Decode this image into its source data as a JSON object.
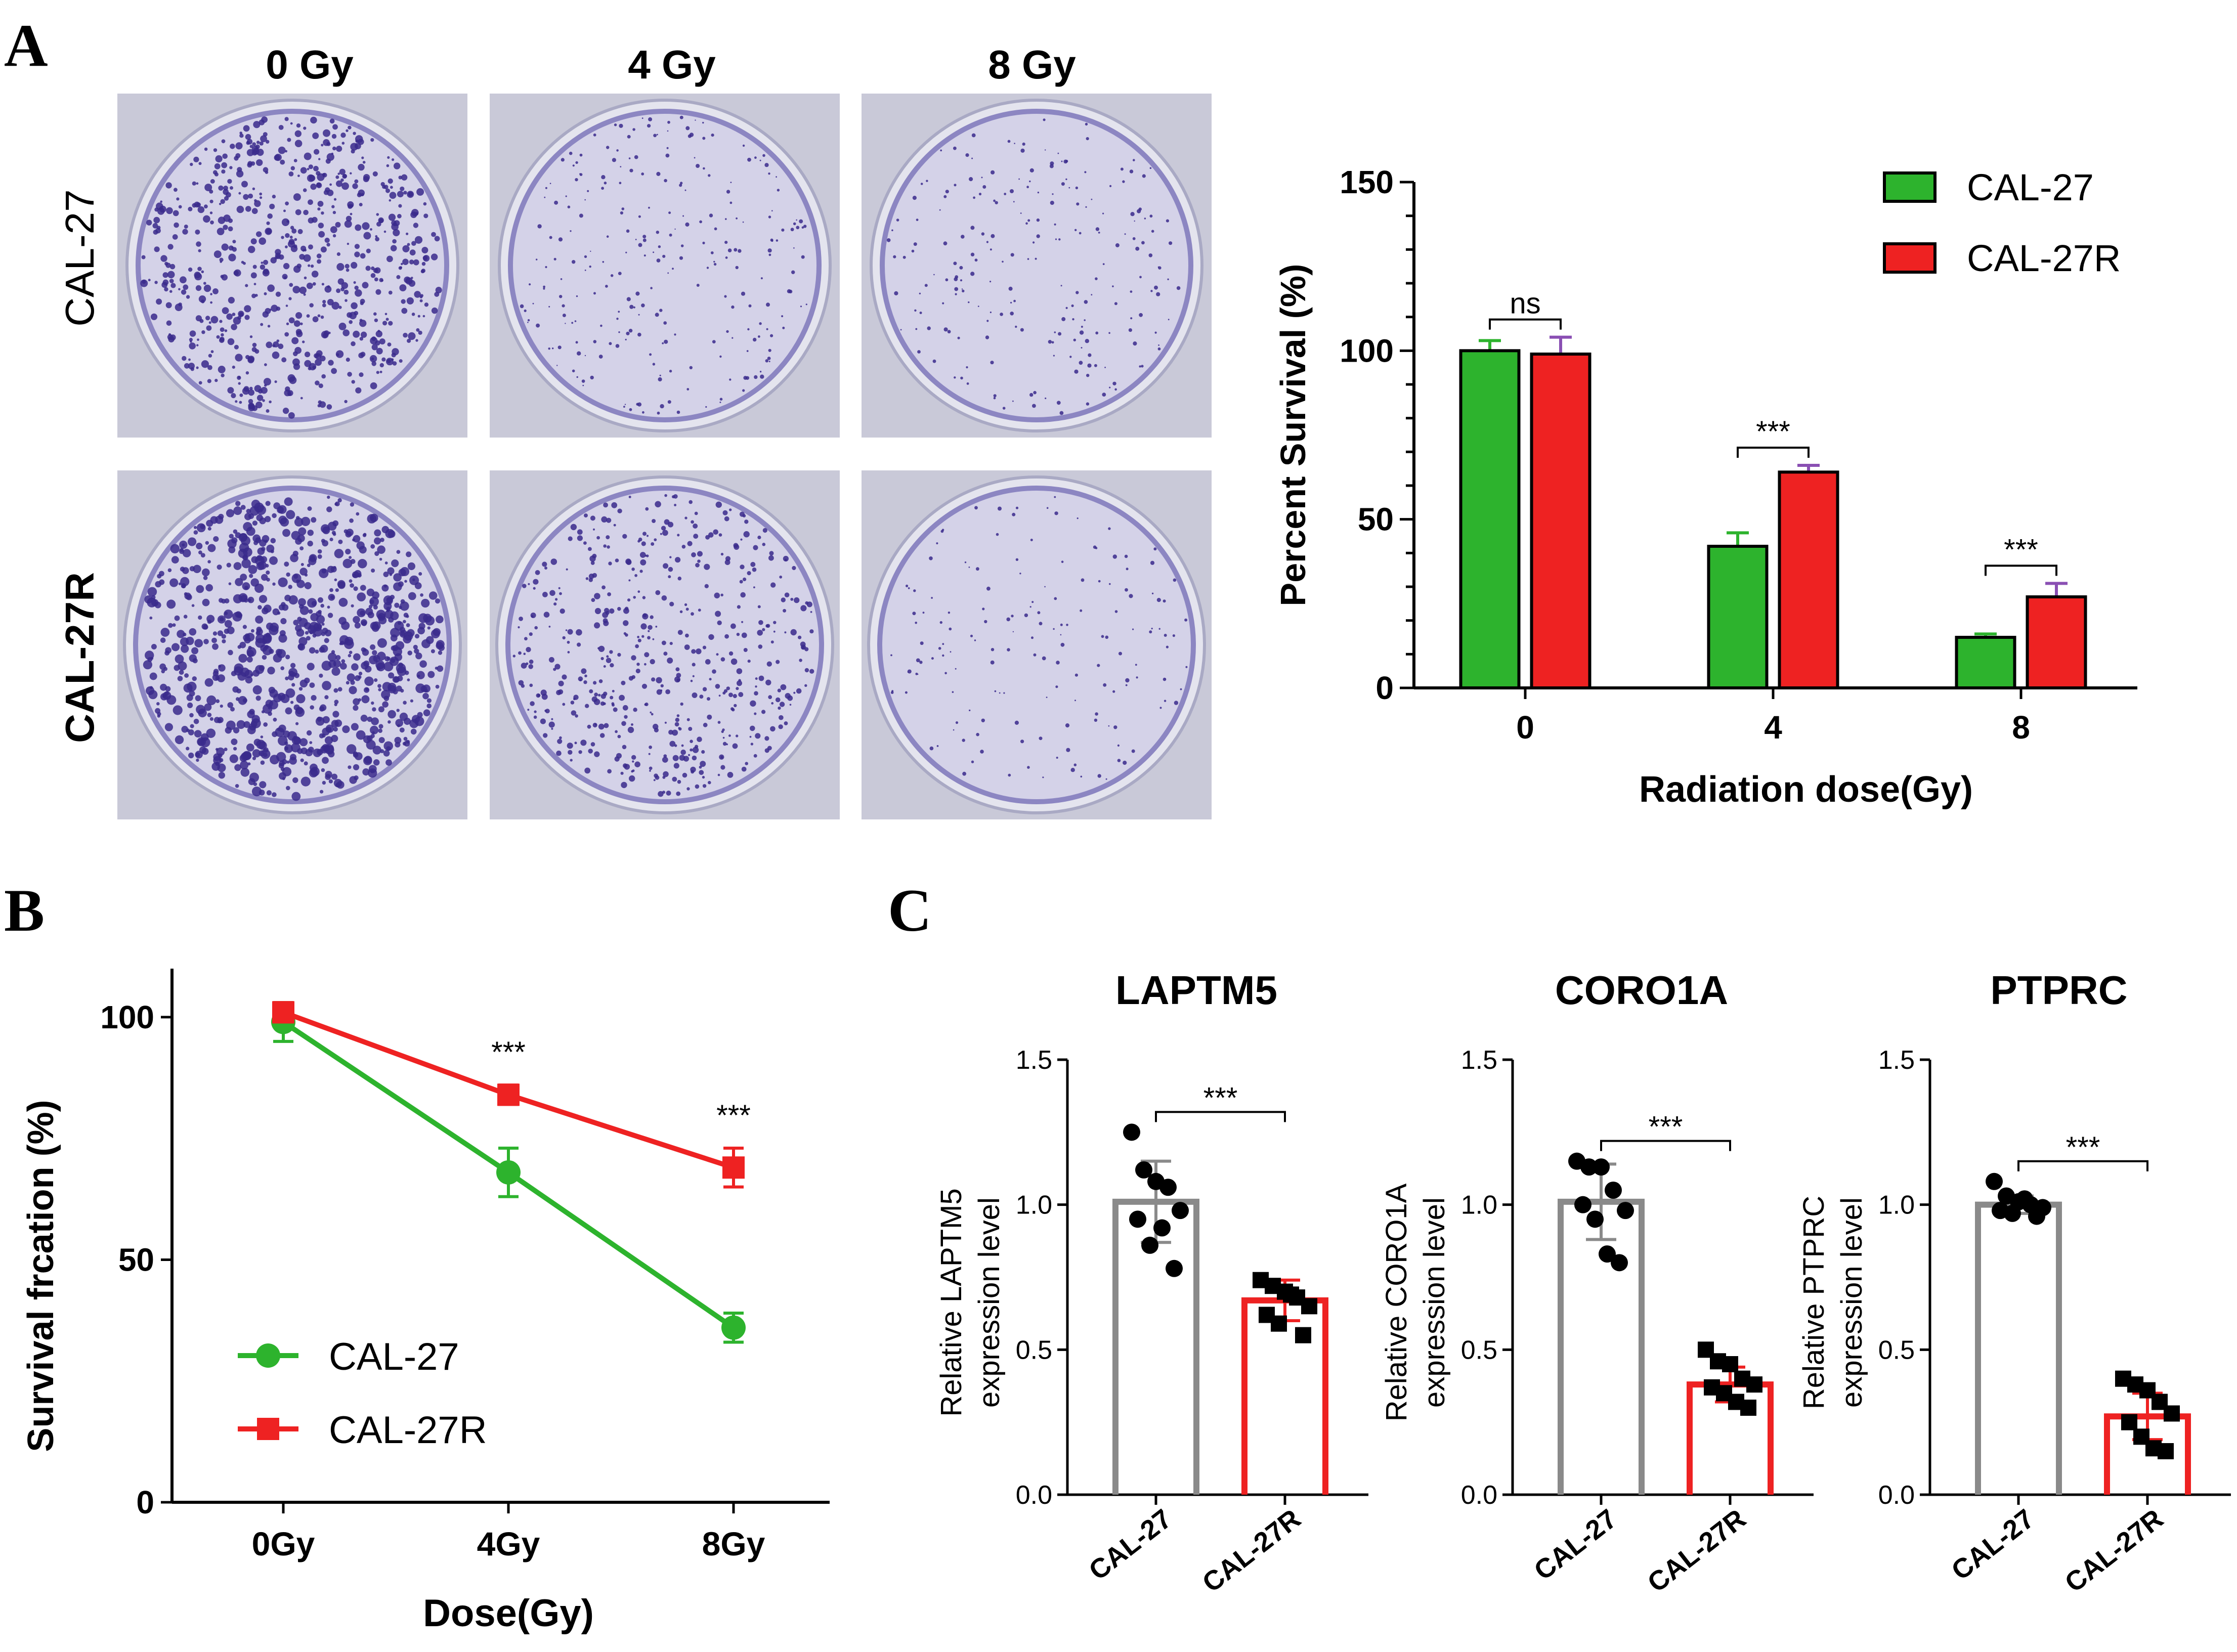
{
  "panels": {
    "A": "A",
    "B": "B",
    "C": "C"
  },
  "photos": {
    "column_labels": [
      "0 Gy",
      "4 Gy",
      "8 Gy"
    ],
    "row_labels": [
      "CAL-27",
      "CAL-27R"
    ],
    "stain_color": "#3a2a8c",
    "plate_color": "#d8d8e6"
  },
  "colors": {
    "green": "#2db32d",
    "red": "#ee2222",
    "gray": "#8a8a8a",
    "errorbar_red": "#8a4fb3"
  },
  "chart_data": [
    {
      "id": "A-bar",
      "type": "bar",
      "categories": [
        "0",
        "4",
        "8"
      ],
      "series": [
        {
          "name": "CAL-27",
          "color": "#2db32d",
          "values": [
            100,
            42,
            15
          ],
          "errors": [
            3,
            4,
            1
          ]
        },
        {
          "name": "CAL-27R",
          "color": "#ee2222",
          "values": [
            99,
            64,
            27
          ],
          "errors": [
            5,
            2,
            4
          ]
        }
      ],
      "significance": [
        "ns",
        "***",
        "***"
      ],
      "xlabel": "Radiation dose(Gy)",
      "ylabel": "Percent Survival (%)",
      "ylim": [
        0,
        150
      ],
      "yticks": [
        "0",
        "50",
        "100",
        "150"
      ],
      "legend_position": "top-right"
    },
    {
      "id": "B-line",
      "type": "line",
      "categories": [
        "0Gy",
        "4Gy",
        "8Gy"
      ],
      "series": [
        {
          "name": "CAL-27",
          "color": "#2db32d",
          "marker": "circle",
          "values": [
            99,
            68,
            36
          ],
          "errors": [
            4,
            5,
            3
          ]
        },
        {
          "name": "CAL-27R",
          "color": "#ee2222",
          "marker": "square",
          "values": [
            101,
            84,
            69
          ],
          "errors": [
            2,
            2,
            4
          ]
        }
      ],
      "significance": [
        "",
        "***",
        "***"
      ],
      "xlabel": "Dose(Gy)",
      "ylabel": "Survival frcation (%)",
      "ylim": [
        0,
        110
      ],
      "yticks": [
        "0",
        "50",
        "100"
      ],
      "legend_position": "bottom-left"
    },
    {
      "id": "C-LAPTM5",
      "type": "bar",
      "title": "LAPTM5",
      "ylabel": [
        "Relative LAPTM5",
        "expression level"
      ],
      "categories": [
        "CAL-27",
        "CAL-27R"
      ],
      "means": [
        1.01,
        0.67
      ],
      "sd": [
        0.14,
        0.07
      ],
      "points": [
        [
          1.25,
          1.12,
          1.08,
          1.06,
          0.98,
          0.95,
          0.86,
          0.92,
          0.78
        ],
        [
          0.74,
          0.72,
          0.7,
          0.68,
          0.65,
          0.62,
          0.59,
          0.69,
          0.55
        ]
      ],
      "significance": "***",
      "ylim": [
        0,
        1.5
      ],
      "yticks": [
        "0.0",
        "0.5",
        "1.0",
        "1.5"
      ]
    },
    {
      "id": "C-CORO1A",
      "type": "bar",
      "title": "CORO1A",
      "ylabel": [
        "Relative CORO1A",
        "expression level"
      ],
      "categories": [
        "CAL-27",
        "CAL-27R"
      ],
      "means": [
        1.01,
        0.38
      ],
      "sd": [
        0.13,
        0.06
      ],
      "points": [
        [
          1.15,
          1.13,
          1.13,
          1.05,
          0.98,
          1.0,
          0.95,
          0.83,
          0.8
        ],
        [
          0.5,
          0.46,
          0.45,
          0.4,
          0.38,
          0.37,
          0.35,
          0.32,
          0.3
        ]
      ],
      "significance": "***",
      "ylim": [
        0,
        1.5
      ],
      "yticks": [
        "0.0",
        "0.5",
        "1.0",
        "1.5"
      ]
    },
    {
      "id": "C-PTPRC",
      "type": "bar",
      "title": "PTPRC",
      "ylabel": [
        "Relative PTPRC",
        "expression level"
      ],
      "categories": [
        "CAL-27",
        "CAL-27R"
      ],
      "means": [
        1.0,
        0.27
      ],
      "sd": [
        0.03,
        0.08
      ],
      "points": [
        [
          1.08,
          1.03,
          1.01,
          1.0,
          0.99,
          0.98,
          0.97,
          1.02,
          0.96
        ],
        [
          0.4,
          0.38,
          0.36,
          0.32,
          0.28,
          0.25,
          0.2,
          0.16,
          0.15
        ]
      ],
      "significance": "***",
      "ylim": [
        0,
        1.5
      ],
      "yticks": [
        "0.0",
        "0.5",
        "1.0",
        "1.5"
      ]
    }
  ]
}
